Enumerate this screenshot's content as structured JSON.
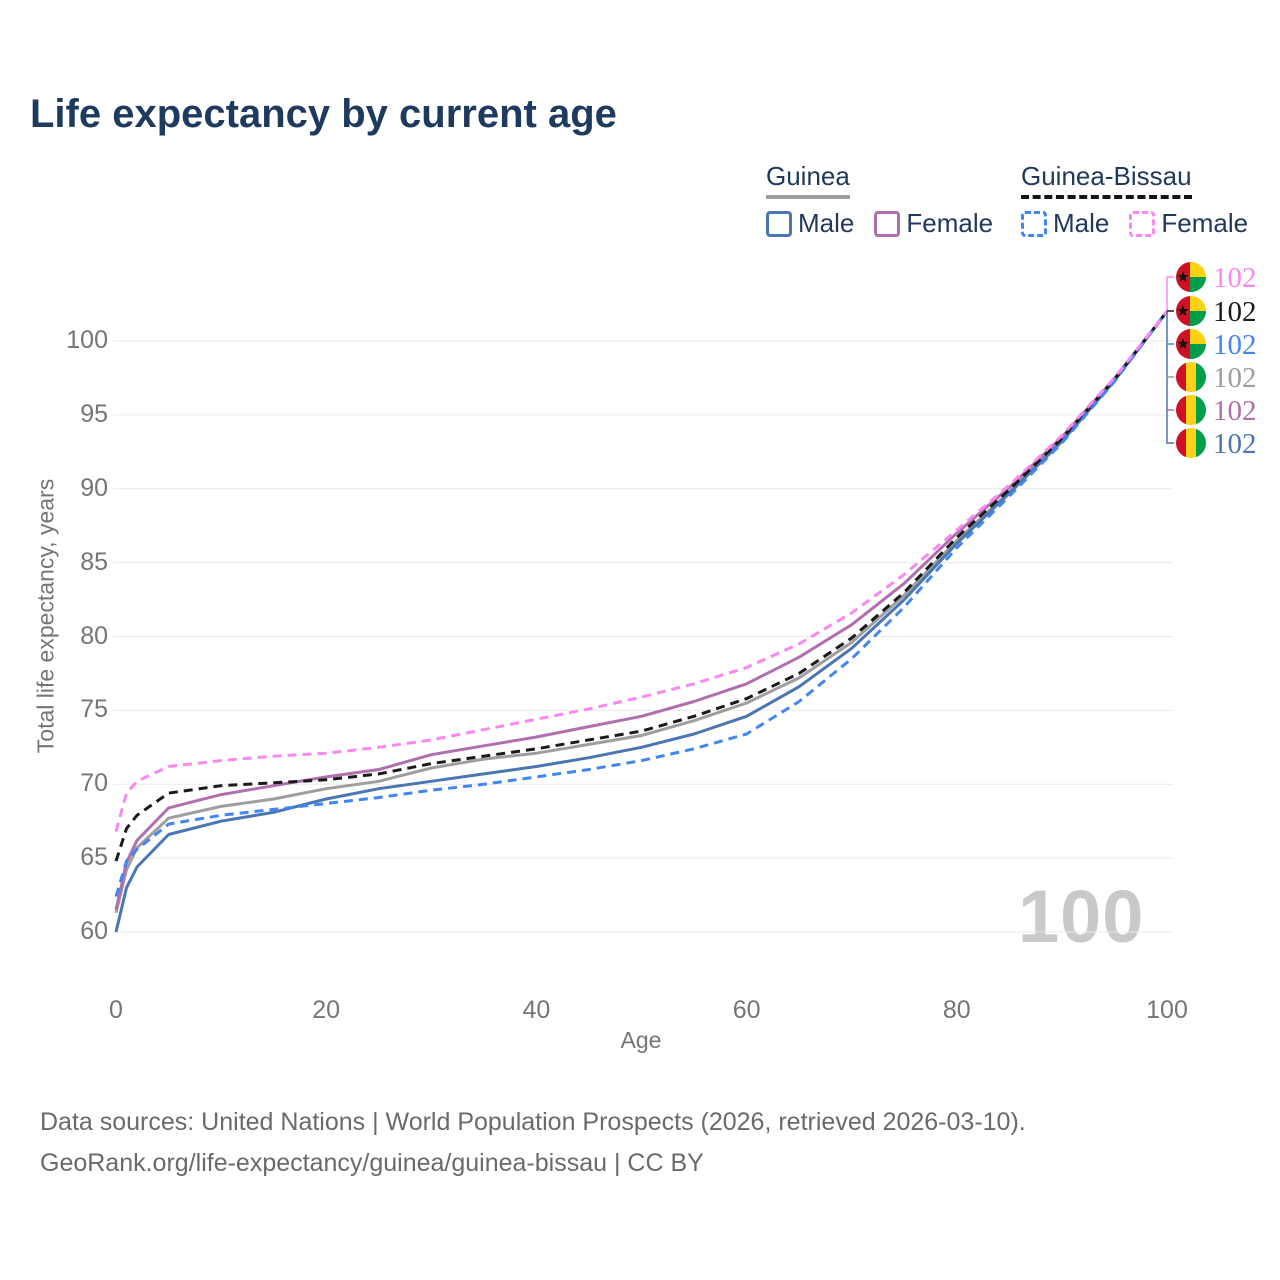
{
  "title": "Life expectancy by current age",
  "legend": {
    "groups": [
      {
        "label": "Guinea",
        "underline_style": "solid",
        "underline_color": "#9e9e9e",
        "items": [
          {
            "label": "Male",
            "color": "#4a76b4",
            "line_style": "solid"
          },
          {
            "label": "Female",
            "color": "#b06fad",
            "line_style": "solid"
          }
        ]
      },
      {
        "label": "Guinea-Bissau",
        "underline_style": "dashed",
        "underline_color": "#141414",
        "items": [
          {
            "label": "Male",
            "color": "#4285f4",
            "line_style": "dashed"
          },
          {
            "label": "Female",
            "color": "#fb87f0",
            "line_style": "dashed"
          }
        ]
      }
    ]
  },
  "chart_data": {
    "type": "line",
    "title": "Life expectancy by current age",
    "xlabel": "Age",
    "ylabel": "Total life expectancy, years",
    "xlim": [
      0,
      100
    ],
    "ylim": [
      60,
      102
    ],
    "xticks": [
      0,
      20,
      40,
      60,
      80,
      100
    ],
    "yticks": [
      60,
      65,
      70,
      75,
      80,
      85,
      90,
      95,
      100
    ],
    "grid": "horizontal",
    "x": [
      0,
      1,
      2,
      5,
      10,
      15,
      20,
      25,
      30,
      35,
      40,
      45,
      50,
      55,
      60,
      65,
      70,
      75,
      80,
      85,
      90,
      95,
      100
    ],
    "series": [
      {
        "name": "Guinea — Both sexes",
        "country": "Guinea",
        "sex": "Both",
        "color": "#9e9e9e",
        "line_style": "solid",
        "values": [
          61.3,
          64.2,
          65.7,
          67.7,
          68.5,
          69.0,
          69.7,
          70.2,
          71.1,
          71.7,
          72.1,
          72.7,
          73.3,
          74.3,
          75.5,
          77.2,
          79.6,
          82.8,
          86.5,
          89.8,
          93.3,
          97.35,
          102
        ]
      },
      {
        "name": "Guinea — Female",
        "country": "Guinea",
        "sex": "Female",
        "color": "#b06fad",
        "line_style": "solid",
        "values": [
          61.5,
          64.7,
          66.2,
          68.4,
          69.3,
          69.9,
          70.5,
          71.0,
          72.0,
          72.6,
          73.2,
          73.9,
          74.6,
          75.6,
          76.8,
          78.6,
          80.8,
          83.6,
          87.0,
          90.1,
          93.5,
          97.45,
          102
        ]
      },
      {
        "name": "Guinea — Male",
        "country": "Guinea",
        "sex": "Male",
        "color": "#4a76b4",
        "line_style": "solid",
        "values": [
          60.0,
          63.0,
          64.4,
          66.6,
          67.5,
          68.1,
          69.0,
          69.7,
          70.2,
          70.7,
          71.2,
          71.8,
          72.5,
          73.4,
          74.6,
          76.6,
          79.2,
          82.5,
          86.3,
          89.7,
          93.2,
          97.3,
          102
        ]
      },
      {
        "name": "Guinea-Bissau — Both sexes",
        "country": "Guinea-Bissau",
        "sex": "Both",
        "color": "#1a1a1a",
        "line_style": "dashed",
        "values": [
          64.8,
          67.0,
          67.9,
          69.4,
          69.9,
          70.1,
          70.3,
          70.7,
          71.4,
          71.9,
          72.4,
          73.0,
          73.6,
          74.6,
          75.8,
          77.5,
          79.9,
          83.0,
          86.7,
          89.95,
          93.4,
          97.4,
          102
        ]
      },
      {
        "name": "Guinea-Bissau — Male",
        "country": "Guinea-Bissau",
        "sex": "Male",
        "color": "#4285f4",
        "line_style": "dashed",
        "values": [
          62.4,
          64.8,
          65.6,
          67.3,
          67.9,
          68.3,
          68.7,
          69.1,
          69.6,
          70.0,
          70.5,
          71.0,
          71.6,
          72.4,
          73.4,
          75.6,
          78.5,
          82.0,
          86.0,
          89.5,
          93.1,
          97.25,
          102
        ]
      },
      {
        "name": "Guinea-Bissau — Female",
        "country": "Guinea-Bissau",
        "sex": "Female",
        "color": "#fb87f0",
        "line_style": "dashed",
        "values": [
          66.8,
          69.4,
          70.2,
          71.2,
          71.6,
          71.9,
          72.1,
          72.5,
          73.0,
          73.7,
          74.4,
          75.1,
          75.9,
          76.8,
          77.9,
          79.5,
          81.6,
          84.2,
          87.2,
          90.25,
          93.6,
          97.5,
          102
        ]
      }
    ],
    "end_labels": [
      {
        "value": "102",
        "color": "#fb87f0",
        "flag": "guinea-bissau",
        "series": "Guinea-Bissau — Female"
      },
      {
        "value": "102",
        "color": "#1a1a1a",
        "flag": "guinea-bissau",
        "series": "Guinea-Bissau — Both sexes"
      },
      {
        "value": "102",
        "color": "#4285f4",
        "flag": "guinea-bissau",
        "series": "Guinea-Bissau — Male"
      },
      {
        "value": "102",
        "color": "#9e9e9e",
        "flag": "guinea",
        "series": "Guinea — Both sexes"
      },
      {
        "value": "102",
        "color": "#b06fad",
        "flag": "guinea",
        "series": "Guinea — Female"
      },
      {
        "value": "102",
        "color": "#4a76b4",
        "flag": "guinea",
        "series": "Guinea — Male"
      }
    ]
  },
  "flag_colors": {
    "red": "#ce1126",
    "yellow": "#fcd116",
    "green": "#009e49",
    "star": "#111111"
  },
  "colors": {
    "title_navy": "#1f3a5f",
    "legend_text_navy": "#22395c",
    "tick_gray": "#757575",
    "grid_gray": "#e9e9e9",
    "watermark_gray": "#c9c9c9",
    "footer_gray": "#6a6a6a"
  },
  "watermark": {
    "text": "100"
  },
  "footer": {
    "line1": "Data sources: United Nations | World Population Prospects (2026, retrieved 2026-03-10).",
    "line2": "GeoRank.org/life-expectancy/guinea/guinea-bissau | CC BY"
  }
}
